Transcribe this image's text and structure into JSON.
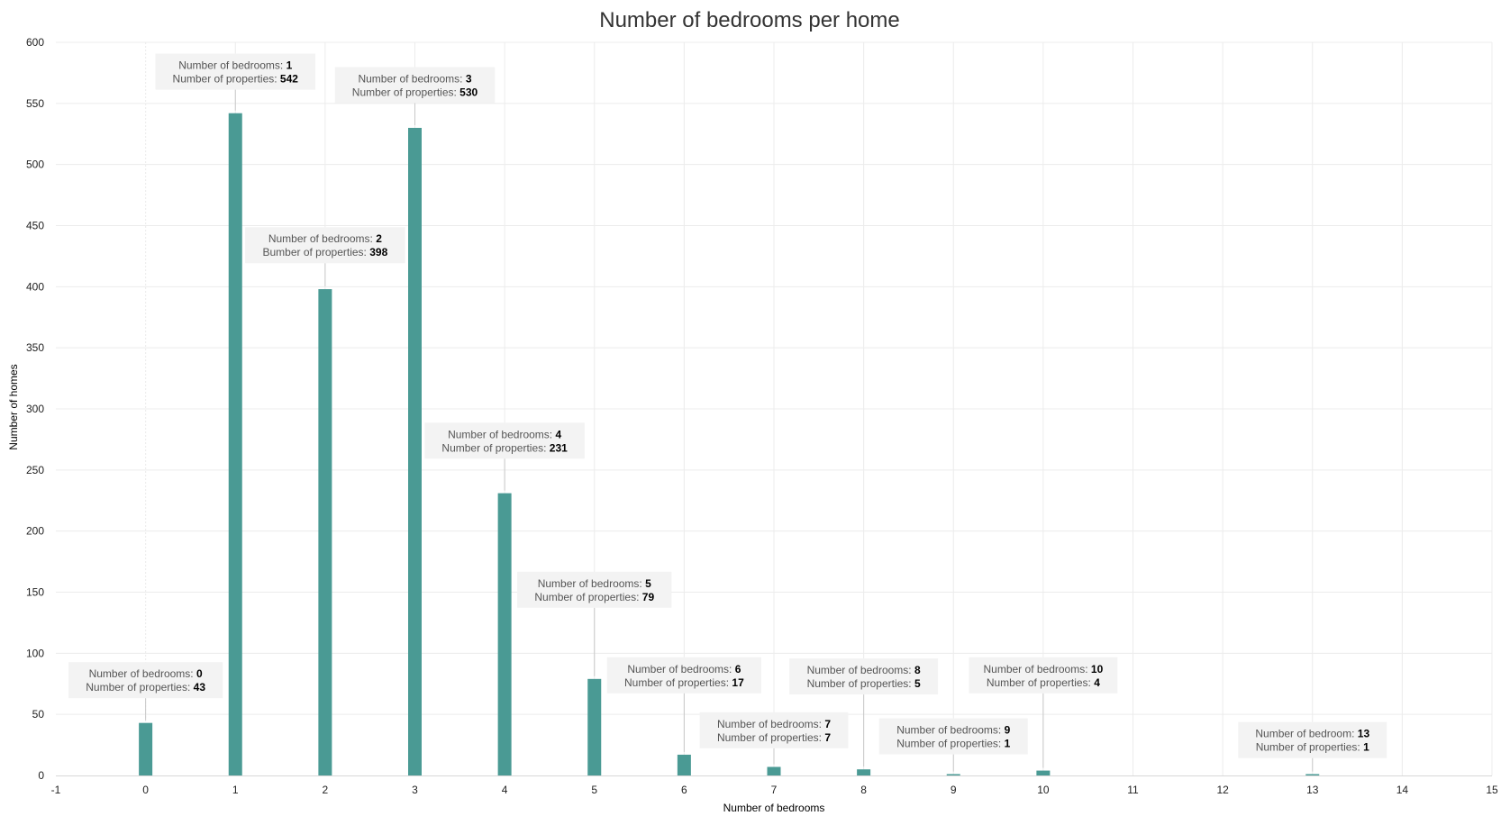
{
  "colors": {
    "bar": "#4a9a94",
    "grid": "#ececec",
    "annotation_bg": "#f3f3f3",
    "leader": "#c8c8c8"
  },
  "chart_data": {
    "type": "bar",
    "title": "Number of bedrooms per home",
    "xlabel": "Number of bedrooms",
    "ylabel": "Number of homes",
    "xlim": [
      -1,
      15
    ],
    "ylim": [
      0,
      600
    ],
    "x_ticks": [
      -1,
      0,
      1,
      2,
      3,
      4,
      5,
      6,
      7,
      8,
      9,
      10,
      11,
      12,
      13,
      14,
      15
    ],
    "y_ticks": [
      0,
      50,
      100,
      150,
      200,
      250,
      300,
      350,
      400,
      450,
      500,
      550,
      600
    ],
    "grid": true,
    "x": [
      0,
      1,
      2,
      3,
      4,
      5,
      6,
      7,
      8,
      9,
      10,
      13
    ],
    "values": [
      43,
      542,
      398,
      530,
      231,
      79,
      17,
      7,
      5,
      1,
      4,
      1
    ],
    "annotations": [
      {
        "x": 0,
        "line1_label": "Number of bedrooms: ",
        "line1_value": "0",
        "line2_label": "Number of properties: ",
        "line2_value": "43",
        "label_y": 78
      },
      {
        "x": 1,
        "line1_label": "Number of bedrooms: ",
        "line1_value": "1",
        "line2_label": "Number of properties: ",
        "line2_value": "542",
        "label_y": 576
      },
      {
        "x": 2,
        "line1_label": "Number of bedrooms: ",
        "line1_value": "2",
        "line2_label": "Bumber of properties: ",
        "line2_value": "398",
        "label_y": 434
      },
      {
        "x": 3,
        "line1_label": "Number of bedrooms: ",
        "line1_value": "3",
        "line2_label": "Number of properties: ",
        "line2_value": "530",
        "label_y": 565
      },
      {
        "x": 4,
        "line1_label": "Number of bedrooms: ",
        "line1_value": "4",
        "line2_label": "Number of properties: ",
        "line2_value": "231",
        "label_y": 274
      },
      {
        "x": 5,
        "line1_label": "Number of bedrooms: ",
        "line1_value": "5",
        "line2_label": "Number of properties: ",
        "line2_value": "79",
        "label_y": 152
      },
      {
        "x": 6,
        "line1_label": "Number of bedrooms: ",
        "line1_value": "6",
        "line2_label": "Number of properties: ",
        "line2_value": "17",
        "label_y": 82
      },
      {
        "x": 7,
        "line1_label": "Number of bedrooms: ",
        "line1_value": "7",
        "line2_label": "Number of properties: ",
        "line2_value": "7",
        "label_y": 37
      },
      {
        "x": 8,
        "line1_label": "Number of bedrooms: ",
        "line1_value": "8",
        "line2_label": "Number of properties: ",
        "line2_value": "5",
        "label_y": 81
      },
      {
        "x": 9,
        "line1_label": "Number of bedrooms: ",
        "line1_value": "9",
        "line2_label": "Number of properties: ",
        "line2_value": "1",
        "label_y": 32
      },
      {
        "x": 10,
        "line1_label": "Number of bedrooms: ",
        "line1_value": "10",
        "line2_label": "Number of properties: ",
        "line2_value": "4",
        "label_y": 82
      },
      {
        "x": 13,
        "line1_label": "Number of bedroom: ",
        "line1_value": "13",
        "line2_label": "Number of properties: ",
        "line2_value": "1",
        "label_y": 29
      }
    ]
  }
}
